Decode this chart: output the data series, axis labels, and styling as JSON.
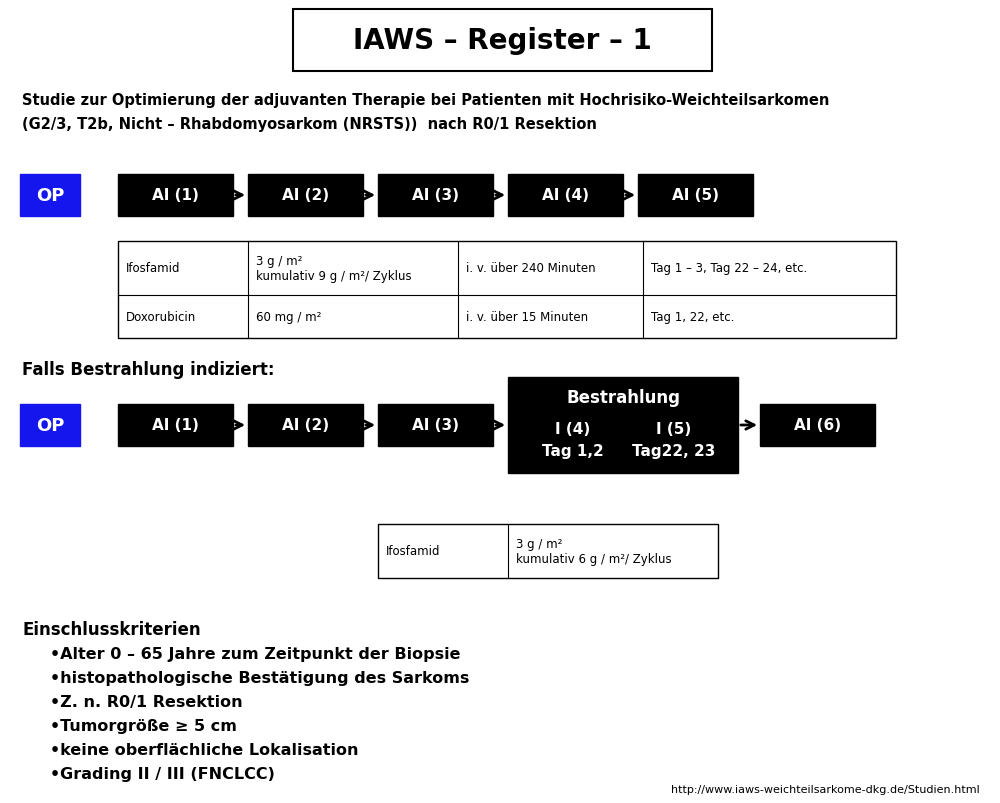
{
  "title": "IAWS – Register – 1",
  "subtitle_line1": "Studie zur Optimierung der adjuvanten Therapie bei Patienten mit Hochrisiko-Weichteilsarkomen",
  "subtitle_line2": "(G2/3, T2b, Nicht – Rhabdomyosarkom (NRSTS))  nach R0/1 Resektion",
  "section2_label": "Falls Bestrahlung indiziert:",
  "footer_url": "http://www.iaws-weichteilsarkome-dkg.de/Studien.html",
  "blue": "#1515EE",
  "bg_color": "#FFFFFF",
  "inclusion_title": "Einschlusskriterien",
  "inclusion_bullets": [
    "•Alter 0 – 65 Jahre zum Zeitpunkt der Biopsie",
    "•histopathologische Bestätigung des Sarkoms",
    "•Z. n. R0/1 Resektion",
    "•Tumorgröße ≥ 5 cm",
    "•keine oberflächliche Lokalisation",
    "•Grading II / III (FNCLCC)"
  ],
  "table1_rows": [
    [
      "Ifosfamid",
      "3 g / m²\nkumulativ 9 g / m²/ Zyklus",
      "i. v. über 240 Minuten",
      "Tag 1 – 3, Tag 22 – 24, etc."
    ],
    [
      "Doxorubicin",
      "60 mg / m²",
      "i. v. über 15 Minuten",
      "Tag 1, 22, etc."
    ]
  ],
  "table2_rows": [
    [
      "Ifosfamid",
      "3 g / m²\nkumulativ 6 g / m²/ Zyklus"
    ]
  ],
  "ai1_labels": [
    "AI (1)",
    "AI (2)",
    "AI (3)",
    "AI (4)",
    "AI (5)"
  ],
  "ai2_labels": [
    "AI (1)",
    "AI (2)",
    "AI (3)"
  ],
  "bestrahlung_lines": [
    "Bestrahlung",
    "I (4)",
    "I (5)",
    "Tag 1,2",
    "Tag22, 23"
  ],
  "ai6_label": "AI (6)",
  "op_label": "OP"
}
